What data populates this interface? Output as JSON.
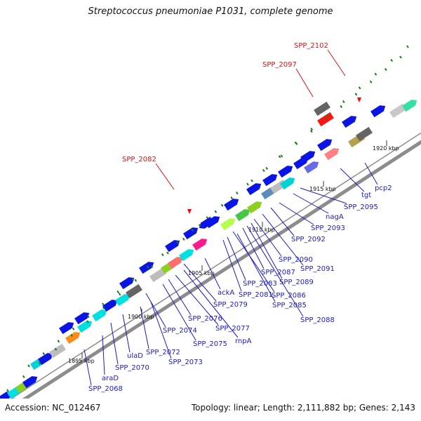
{
  "title": "Streptococcus pneumoniae P1031, complete genome",
  "footer": {
    "accession": "Accession: NC_012467",
    "summary": "Topology: linear; Length: 2,111,882 bp; Genes: 2,143"
  },
  "colors": {
    "backbone": "#8c8c8c",
    "gene_default": "#0a14e6",
    "gene_label": "#1a1acc",
    "highlight_label": "#dd1111",
    "marker": "#1a7a1a",
    "scale_text": "#111111"
  },
  "scale_labels": [
    "1895 kbp",
    "1900 kbp",
    "1905 kbp",
    "1910 kbp",
    "1915 kbp",
    "1920 kbp"
  ],
  "highlight_labels": [
    "SPP_2082",
    "SPP_2097",
    "SPP_2102"
  ],
  "gene_labels": [
    "SPP_2068",
    "araD",
    "SPP_2070",
    "ulaD",
    "SPP_2072",
    "SPP_2073",
    "SPP_2074",
    "SPP_2075",
    "SPP_2076",
    "SPP_2077",
    "rnpA",
    "SPP_2079",
    "ackA",
    "SPP_2081",
    "SPP_2083",
    "SPP_2085",
    "SPP_2086",
    "SPP_2087",
    "SPP_2088",
    "SPP_2089",
    "SPP_2090",
    "SPP_2091",
    "SPP_2092",
    "SPP_2093",
    "nagA",
    "SPP_2095",
    "tgt",
    "pcp2"
  ]
}
